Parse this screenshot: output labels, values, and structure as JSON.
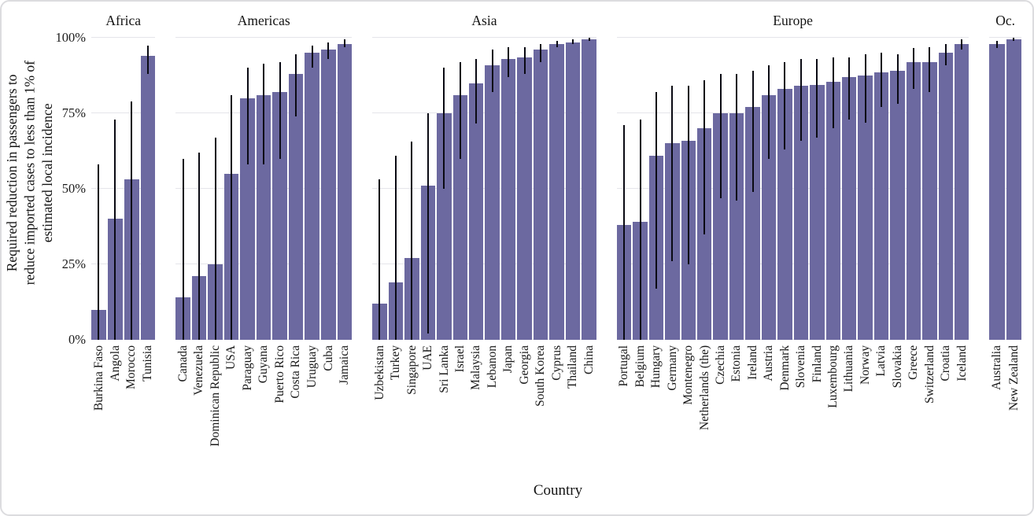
{
  "figure": {
    "y_axis_label_lines": {
      "0": "Required reduction in passengers to",
      "1": "reduce imported cases to less than 1% of",
      "2": "estimated local incidence"
    },
    "x_axis_label": "Country",
    "y_ticks": [
      {
        "label": "100%",
        "value": 100
      },
      {
        "label": "75%",
        "value": 75
      },
      {
        "label": "50%",
        "value": 50
      },
      {
        "label": "25%",
        "value": 25
      },
      {
        "label": "0%",
        "value": 0
      }
    ]
  },
  "chart_data": {
    "type": "bar",
    "title": "",
    "xlabel": "Country",
    "ylabel": "Required reduction in passengers to reduce imported cases to less than 1% of estimated local incidence",
    "ylim": [
      0,
      100
    ],
    "grid": true,
    "gridlines_at": [
      0,
      25,
      50,
      75,
      100
    ],
    "legend_position": "none",
    "bar_color": "#6c69a0",
    "error_bar_color": "#0a0a13",
    "value_unit": "%",
    "facets": [
      {
        "name": "Africa",
        "countries": [
          "Burkina Faso",
          "Angola",
          "Morocco",
          "Tunisia"
        ],
        "values": [
          10,
          40,
          53,
          94
        ],
        "err_low": [
          0,
          0,
          0,
          88
        ],
        "err_high": [
          58,
          73,
          79,
          97.5
        ]
      },
      {
        "name": "Americas",
        "countries": [
          "Canada",
          "Venezuela",
          "Dominican Republic",
          "USA",
          "Paraguay",
          "Guyana",
          "Puerto Rico",
          "Costa Rica",
          "Uruguay",
          "Cuba",
          "Jamaica"
        ],
        "values": [
          14,
          21,
          25,
          55,
          80,
          81,
          82,
          88,
          95,
          96,
          98
        ],
        "err_low": [
          0,
          0,
          0,
          0,
          58,
          58,
          60,
          74,
          90,
          93,
          97
        ],
        "err_high": [
          60,
          62,
          67,
          81,
          90,
          91.5,
          92,
          94.5,
          97.5,
          98.5,
          99.5
        ]
      },
      {
        "name": "Asia",
        "countries": [
          "Uzbekistan",
          "Turkey",
          "Singapore",
          "UAE",
          "Sri Lanka",
          "Israel",
          "Malaysia",
          "Lebanon",
          "Japan",
          "Georgia",
          "South Korea",
          "Cyprus",
          "Thailand",
          "China"
        ],
        "values": [
          12,
          19,
          27,
          51,
          75,
          81,
          85,
          91,
          93,
          93.5,
          96,
          98,
          98.5,
          99.5
        ],
        "err_low": [
          0,
          0,
          0,
          2,
          50,
          60,
          71.5,
          82,
          87,
          88,
          92,
          97,
          98,
          99
        ],
        "err_high": [
          53,
          61,
          65.5,
          75,
          90,
          92,
          93,
          96,
          97,
          97,
          98,
          99,
          99.5,
          100
        ]
      },
      {
        "name": "Europe",
        "countries": [
          "Portugal",
          "Belgium",
          "Hungary",
          "Germany",
          "Montenegro",
          "Netherlands (the)",
          "Czechia",
          "Estonia",
          "Ireland",
          "Austria",
          "Denmark",
          "Slovenia",
          "Finland",
          "Luxembourg",
          "Lithuania",
          "Norway",
          "Latvia",
          "Slovakia",
          "Greece",
          "Switzerland",
          "Croatia",
          "Iceland"
        ],
        "values": [
          38,
          39,
          61,
          65,
          66,
          70,
          75,
          75,
          77,
          81,
          83,
          84,
          84.5,
          85.5,
          87,
          87.5,
          88.5,
          89,
          92,
          92,
          95,
          98
        ],
        "err_low": [
          0,
          0,
          17,
          26,
          25,
          35,
          47,
          46,
          49,
          60,
          63,
          66,
          67,
          70,
          73,
          72,
          77,
          78,
          83,
          82,
          91,
          96
        ],
        "err_high": [
          71,
          73,
          82,
          84,
          84,
          86,
          88,
          88,
          89,
          91,
          92,
          93,
          93,
          93.5,
          93.5,
          94.5,
          95,
          94.5,
          96.5,
          97,
          98,
          99.5
        ]
      },
      {
        "name": "Oc.",
        "countries": [
          "Australia",
          "New Zealand"
        ],
        "values": [
          98,
          99.5
        ],
        "err_low": [
          96.5,
          99
        ],
        "err_high": [
          99,
          100
        ]
      }
    ]
  }
}
